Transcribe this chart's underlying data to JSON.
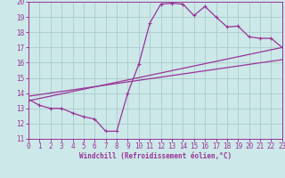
{
  "xlabel": "Windchill (Refroidissement éolien,°C)",
  "bg_color": "#cce8e8",
  "grid_color": "#aacccc",
  "line_color": "#993399",
  "xmin": 0,
  "xmax": 23,
  "ymin": 11,
  "ymax": 20,
  "curve1_x": [
    0,
    1,
    2,
    3,
    4,
    5,
    6,
    7,
    8,
    9,
    10,
    11,
    12,
    13,
    14,
    15,
    16,
    17,
    18,
    19,
    20,
    21,
    22,
    23
  ],
  "curve1_y": [
    13.6,
    13.2,
    13.0,
    13.0,
    12.7,
    12.45,
    12.3,
    11.5,
    11.5,
    14.0,
    15.9,
    18.6,
    19.85,
    19.9,
    19.85,
    19.1,
    19.7,
    19.0,
    18.35,
    18.4,
    17.7,
    17.6,
    17.6,
    17.0
  ],
  "curve2_x": [
    0,
    23
  ],
  "curve2_y": [
    13.5,
    17.0
  ],
  "curve3_x": [
    0,
    23
  ],
  "curve3_y": [
    13.8,
    16.2
  ],
  "xticks": [
    0,
    1,
    2,
    3,
    4,
    5,
    6,
    7,
    8,
    9,
    10,
    11,
    12,
    13,
    14,
    15,
    16,
    17,
    18,
    19,
    20,
    21,
    22,
    23
  ],
  "yticks": [
    11,
    12,
    13,
    14,
    15,
    16,
    17,
    18,
    19,
    20
  ],
  "tick_fontsize": 5.5,
  "xlabel_fontsize": 5.5
}
